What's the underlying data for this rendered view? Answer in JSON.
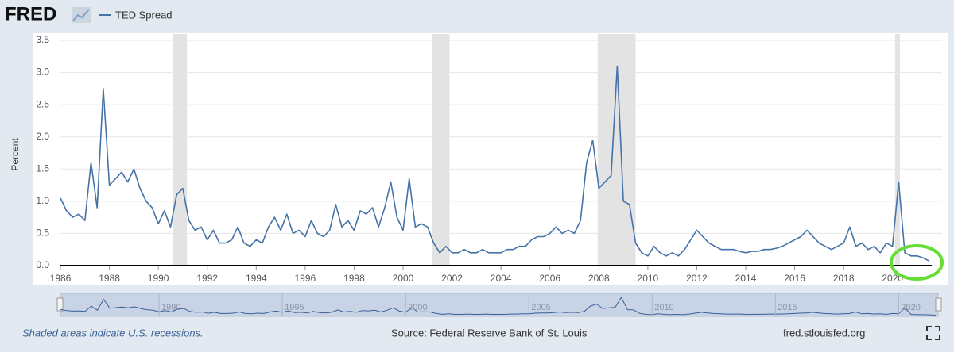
{
  "logo": "FRED",
  "recession_note": "Shaded areas indicate U.S. recessions.",
  "source": "Source: Federal Reserve Bank of St. Louis",
  "url": "fred.stlouisfed.org",
  "chart_data": {
    "type": "line",
    "y_label": "Percent",
    "x": [
      1986,
      1986.25,
      1986.5,
      1986.75,
      1987,
      1987.25,
      1987.5,
      1987.75,
      1988,
      1988.25,
      1988.5,
      1988.75,
      1989,
      1989.25,
      1989.5,
      1989.75,
      1990,
      1990.25,
      1990.5,
      1990.75,
      1991,
      1991.25,
      1991.5,
      1991.75,
      1992,
      1992.25,
      1992.5,
      1992.75,
      1993,
      1993.25,
      1993.5,
      1993.75,
      1994,
      1994.25,
      1994.5,
      1994.75,
      1995,
      1995.25,
      1995.5,
      1995.75,
      1996,
      1996.25,
      1996.5,
      1996.75,
      1997,
      1997.25,
      1997.5,
      1997.75,
      1998,
      1998.25,
      1998.5,
      1998.75,
      1999,
      1999.25,
      1999.5,
      1999.75,
      2000,
      2000.25,
      2000.5,
      2000.75,
      2001,
      2001.25,
      2001.5,
      2001.75,
      2002,
      2002.25,
      2002.5,
      2002.75,
      2003,
      2003.25,
      2003.5,
      2003.75,
      2004,
      2004.25,
      2004.5,
      2004.75,
      2005,
      2005.25,
      2005.5,
      2005.75,
      2006,
      2006.25,
      2006.5,
      2006.75,
      2007,
      2007.25,
      2007.5,
      2007.75,
      2008,
      2008.25,
      2008.5,
      2008.75,
      2009,
      2009.25,
      2009.5,
      2009.75,
      2010,
      2010.25,
      2010.5,
      2010.75,
      2011,
      2011.25,
      2011.5,
      2011.75,
      2012,
      2012.25,
      2012.5,
      2012.75,
      2013,
      2013.25,
      2013.5,
      2013.75,
      2014,
      2014.25,
      2014.5,
      2014.75,
      2015,
      2015.25,
      2015.5,
      2015.75,
      2016,
      2016.25,
      2016.5,
      2016.75,
      2017,
      2017.25,
      2017.5,
      2017.75,
      2018,
      2018.25,
      2018.5,
      2018.75,
      2019,
      2019.25,
      2019.5,
      2019.75,
      2020,
      2020.25,
      2020.5,
      2020.75,
      2021,
      2021.25,
      2021.5
    ],
    "series": [
      {
        "name": "TED Spread",
        "color": "#4572a7",
        "values": [
          1.05,
          0.85,
          0.75,
          0.8,
          0.7,
          1.6,
          0.9,
          2.75,
          1.25,
          1.35,
          1.45,
          1.3,
          1.5,
          1.2,
          1.0,
          0.9,
          0.65,
          0.85,
          0.6,
          1.1,
          1.2,
          0.7,
          0.55,
          0.6,
          0.4,
          0.55,
          0.35,
          0.35,
          0.4,
          0.6,
          0.35,
          0.3,
          0.4,
          0.35,
          0.6,
          0.75,
          0.55,
          0.8,
          0.5,
          0.55,
          0.45,
          0.7,
          0.5,
          0.45,
          0.55,
          0.95,
          0.6,
          0.7,
          0.55,
          0.85,
          0.8,
          0.9,
          0.6,
          0.9,
          1.3,
          0.75,
          0.55,
          1.35,
          0.6,
          0.65,
          0.6,
          0.35,
          0.2,
          0.3,
          0.2,
          0.2,
          0.25,
          0.2,
          0.2,
          0.25,
          0.2,
          0.2,
          0.2,
          0.25,
          0.25,
          0.3,
          0.3,
          0.4,
          0.45,
          0.45,
          0.5,
          0.6,
          0.5,
          0.55,
          0.5,
          0.7,
          1.6,
          1.95,
          1.2,
          1.3,
          1.4,
          3.1,
          1.0,
          0.95,
          0.35,
          0.2,
          0.15,
          0.3,
          0.2,
          0.15,
          0.2,
          0.15,
          0.25,
          0.4,
          0.55,
          0.45,
          0.35,
          0.3,
          0.25,
          0.25,
          0.25,
          0.22,
          0.2,
          0.22,
          0.22,
          0.25,
          0.25,
          0.27,
          0.3,
          0.35,
          0.4,
          0.45,
          0.55,
          0.45,
          0.35,
          0.3,
          0.25,
          0.3,
          0.35,
          0.6,
          0.3,
          0.35,
          0.25,
          0.3,
          0.2,
          0.35,
          0.3,
          1.3,
          0.2,
          0.15,
          0.15,
          0.12,
          0.07
        ]
      }
    ],
    "recessions": [
      {
        "start": 1990.58,
        "end": 1991.17
      },
      {
        "start": 2001.2,
        "end": 2001.9
      },
      {
        "start": 2007.95,
        "end": 2009.5
      },
      {
        "start": 2020.1,
        "end": 2020.3
      }
    ],
    "recession_color": "#e3e3e3",
    "xlim": [
      1986,
      2021.6
    ],
    "xticks": [
      1986,
      1988,
      1990,
      1992,
      1994,
      1996,
      1998,
      2000,
      2002,
      2004,
      2006,
      2008,
      2010,
      2012,
      2014,
      2016,
      2018,
      2020
    ],
    "ylim": [
      0,
      3.5
    ],
    "yticks": [
      {
        "value": 0,
        "label": "0.0"
      },
      0.5,
      {
        "value": 1,
        "label": "1.0"
      },
      1.5,
      {
        "value": 2,
        "label": "2.0"
      },
      2.5,
      {
        "value": 3,
        "label": "3.0"
      },
      3.5
    ],
    "navigator_ticks": [
      1990,
      1995,
      2000,
      2005,
      2010,
      2015,
      2020
    ],
    "grid": true,
    "legend": "top-left"
  }
}
